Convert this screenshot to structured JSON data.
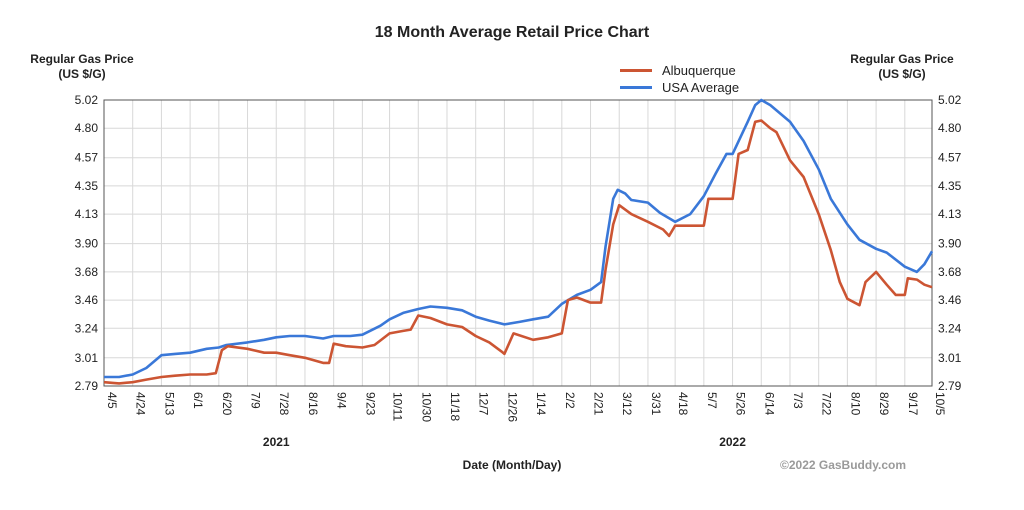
{
  "chart_data": {
    "type": "line",
    "title": "18 Month Average Retail Price Chart",
    "ylabel_left": "Regular Gas Price (US $/G)",
    "ylabel_right": "Regular Gas Price (US $/G)",
    "xlabel": "Date (Month/Day)",
    "y_ticks": [
      "5.02",
      "4.80",
      "4.57",
      "4.35",
      "4.13",
      "3.90",
      "3.68",
      "3.46",
      "3.24",
      "3.01",
      "2.79"
    ],
    "ylim": [
      2.79,
      5.02
    ],
    "xlim": [
      "2021-04-05",
      "2022-10-05"
    ],
    "x_ticks": [
      {
        "label": "4/5",
        "date": "2021-04-05"
      },
      {
        "label": "4/24",
        "date": "2021-04-24"
      },
      {
        "label": "5/13",
        "date": "2021-05-13"
      },
      {
        "label": "6/1",
        "date": "2021-06-01"
      },
      {
        "label": "6/20",
        "date": "2021-06-20"
      },
      {
        "label": "7/9",
        "date": "2021-07-09"
      },
      {
        "label": "7/28",
        "date": "2021-07-28"
      },
      {
        "label": "8/16",
        "date": "2021-08-16"
      },
      {
        "label": "9/4",
        "date": "2021-09-04"
      },
      {
        "label": "9/23",
        "date": "2021-09-23"
      },
      {
        "label": "10/11",
        "date": "2021-10-11"
      },
      {
        "label": "10/30",
        "date": "2021-10-30"
      },
      {
        "label": "11/18",
        "date": "2021-11-18"
      },
      {
        "label": "12/7",
        "date": "2021-12-07"
      },
      {
        "label": "12/26",
        "date": "2021-12-26"
      },
      {
        "label": "1/14",
        "date": "2022-01-14"
      },
      {
        "label": "2/2",
        "date": "2022-02-02"
      },
      {
        "label": "2/21",
        "date": "2022-02-21"
      },
      {
        "label": "3/12",
        "date": "2022-03-12"
      },
      {
        "label": "3/31",
        "date": "2022-03-31"
      },
      {
        "label": "4/18",
        "date": "2022-04-18"
      },
      {
        "label": "5/7",
        "date": "2022-05-07"
      },
      {
        "label": "5/26",
        "date": "2022-05-26"
      },
      {
        "label": "6/14",
        "date": "2022-06-14"
      },
      {
        "label": "7/3",
        "date": "2022-07-03"
      },
      {
        "label": "7/22",
        "date": "2022-07-22"
      },
      {
        "label": "8/10",
        "date": "2022-08-10"
      },
      {
        "label": "8/29",
        "date": "2022-08-29"
      },
      {
        "label": "9/17",
        "date": "2022-09-17"
      },
      {
        "label": "10/5",
        "date": "2022-10-05"
      }
    ],
    "year_labels": [
      {
        "label": "2021",
        "date": "2021-07-28"
      },
      {
        "label": "2022",
        "date": "2022-05-26"
      }
    ],
    "grid": true,
    "legend_position": "top-right",
    "series": [
      {
        "name": "Albuquerque",
        "color": "#cc5533",
        "points": [
          [
            "2021-04-05",
            2.82
          ],
          [
            "2021-04-15",
            2.81
          ],
          [
            "2021-04-24",
            2.82
          ],
          [
            "2021-05-03",
            2.84
          ],
          [
            "2021-05-13",
            2.86
          ],
          [
            "2021-05-22",
            2.87
          ],
          [
            "2021-06-01",
            2.88
          ],
          [
            "2021-06-12",
            2.88
          ],
          [
            "2021-06-18",
            2.89
          ],
          [
            "2021-06-22",
            3.07
          ],
          [
            "2021-06-26",
            3.1
          ],
          [
            "2021-07-09",
            3.08
          ],
          [
            "2021-07-20",
            3.05
          ],
          [
            "2021-07-28",
            3.05
          ],
          [
            "2021-08-06",
            3.03
          ],
          [
            "2021-08-16",
            3.01
          ],
          [
            "2021-08-28",
            2.97
          ],
          [
            "2021-09-01",
            2.97
          ],
          [
            "2021-09-04",
            3.12
          ],
          [
            "2021-09-12",
            3.1
          ],
          [
            "2021-09-23",
            3.09
          ],
          [
            "2021-10-01",
            3.11
          ],
          [
            "2021-10-11",
            3.2
          ],
          [
            "2021-10-20",
            3.22
          ],
          [
            "2021-10-25",
            3.23
          ],
          [
            "2021-10-30",
            3.34
          ],
          [
            "2021-11-07",
            3.32
          ],
          [
            "2021-11-18",
            3.27
          ],
          [
            "2021-11-28",
            3.25
          ],
          [
            "2021-12-07",
            3.18
          ],
          [
            "2021-12-16",
            3.13
          ],
          [
            "2021-12-24",
            3.06
          ],
          [
            "2021-12-26",
            3.04
          ],
          [
            "2022-01-01",
            3.2
          ],
          [
            "2022-01-14",
            3.15
          ],
          [
            "2022-01-24",
            3.17
          ],
          [
            "2022-02-02",
            3.2
          ],
          [
            "2022-02-06",
            3.46
          ],
          [
            "2022-02-12",
            3.48
          ],
          [
            "2022-02-21",
            3.44
          ],
          [
            "2022-02-28",
            3.44
          ],
          [
            "2022-03-03",
            3.7
          ],
          [
            "2022-03-08",
            4.05
          ],
          [
            "2022-03-12",
            4.2
          ],
          [
            "2022-03-20",
            4.13
          ],
          [
            "2022-03-31",
            4.07
          ],
          [
            "2022-04-10",
            4.01
          ],
          [
            "2022-04-14",
            3.96
          ],
          [
            "2022-04-18",
            4.04
          ],
          [
            "2022-04-28",
            4.04
          ],
          [
            "2022-05-07",
            4.04
          ],
          [
            "2022-05-10",
            4.25
          ],
          [
            "2022-05-20",
            4.25
          ],
          [
            "2022-05-26",
            4.25
          ],
          [
            "2022-05-30",
            4.6
          ],
          [
            "2022-06-05",
            4.63
          ],
          [
            "2022-06-10",
            4.85
          ],
          [
            "2022-06-14",
            4.86
          ],
          [
            "2022-06-20",
            4.8
          ],
          [
            "2022-06-24",
            4.77
          ],
          [
            "2022-07-03",
            4.55
          ],
          [
            "2022-07-12",
            4.42
          ],
          [
            "2022-07-22",
            4.13
          ],
          [
            "2022-07-30",
            3.85
          ],
          [
            "2022-08-05",
            3.6
          ],
          [
            "2022-08-10",
            3.47
          ],
          [
            "2022-08-18",
            3.42
          ],
          [
            "2022-08-22",
            3.6
          ],
          [
            "2022-08-29",
            3.68
          ],
          [
            "2022-09-05",
            3.58
          ],
          [
            "2022-09-11",
            3.5
          ],
          [
            "2022-09-17",
            3.5
          ],
          [
            "2022-09-19",
            3.63
          ],
          [
            "2022-09-25",
            3.62
          ],
          [
            "2022-09-30",
            3.58
          ],
          [
            "2022-10-05",
            3.56
          ]
        ]
      },
      {
        "name": "USA Average",
        "color": "#3a78d8",
        "points": [
          [
            "2021-04-05",
            2.86
          ],
          [
            "2021-04-15",
            2.86
          ],
          [
            "2021-04-24",
            2.88
          ],
          [
            "2021-05-03",
            2.93
          ],
          [
            "2021-05-13",
            3.03
          ],
          [
            "2021-05-22",
            3.04
          ],
          [
            "2021-06-01",
            3.05
          ],
          [
            "2021-06-12",
            3.08
          ],
          [
            "2021-06-20",
            3.09
          ],
          [
            "2021-06-25",
            3.11
          ],
          [
            "2021-07-09",
            3.13
          ],
          [
            "2021-07-20",
            3.15
          ],
          [
            "2021-07-28",
            3.17
          ],
          [
            "2021-08-06",
            3.18
          ],
          [
            "2021-08-16",
            3.18
          ],
          [
            "2021-08-28",
            3.16
          ],
          [
            "2021-09-04",
            3.18
          ],
          [
            "2021-09-15",
            3.18
          ],
          [
            "2021-09-23",
            3.19
          ],
          [
            "2021-10-05",
            3.26
          ],
          [
            "2021-10-11",
            3.31
          ],
          [
            "2021-10-20",
            3.36
          ],
          [
            "2021-10-30",
            3.39
          ],
          [
            "2021-11-07",
            3.41
          ],
          [
            "2021-11-18",
            3.4
          ],
          [
            "2021-11-28",
            3.38
          ],
          [
            "2021-12-07",
            3.33
          ],
          [
            "2021-12-16",
            3.3
          ],
          [
            "2021-12-26",
            3.27
          ],
          [
            "2022-01-05",
            3.29
          ],
          [
            "2022-01-14",
            3.31
          ],
          [
            "2022-01-24",
            3.33
          ],
          [
            "2022-02-02",
            3.43
          ],
          [
            "2022-02-12",
            3.5
          ],
          [
            "2022-02-21",
            3.54
          ],
          [
            "2022-02-28",
            3.6
          ],
          [
            "2022-03-03",
            3.88
          ],
          [
            "2022-03-08",
            4.25
          ],
          [
            "2022-03-11",
            4.32
          ],
          [
            "2022-03-16",
            4.29
          ],
          [
            "2022-03-20",
            4.24
          ],
          [
            "2022-03-31",
            4.22
          ],
          [
            "2022-04-08",
            4.14
          ],
          [
            "2022-04-18",
            4.07
          ],
          [
            "2022-04-28",
            4.13
          ],
          [
            "2022-05-07",
            4.27
          ],
          [
            "2022-05-15",
            4.45
          ],
          [
            "2022-05-22",
            4.6
          ],
          [
            "2022-05-26",
            4.6
          ],
          [
            "2022-06-05",
            4.85
          ],
          [
            "2022-06-10",
            4.98
          ],
          [
            "2022-06-14",
            5.02
          ],
          [
            "2022-06-20",
            4.98
          ],
          [
            "2022-07-03",
            4.85
          ],
          [
            "2022-07-12",
            4.7
          ],
          [
            "2022-07-22",
            4.48
          ],
          [
            "2022-07-30",
            4.25
          ],
          [
            "2022-08-10",
            4.05
          ],
          [
            "2022-08-18",
            3.93
          ],
          [
            "2022-08-29",
            3.86
          ],
          [
            "2022-09-05",
            3.83
          ],
          [
            "2022-09-17",
            3.72
          ],
          [
            "2022-09-25",
            3.68
          ],
          [
            "2022-09-30",
            3.74
          ],
          [
            "2022-10-05",
            3.84
          ]
        ]
      }
    ]
  },
  "copyright": "©2022 GasBuddy.com"
}
